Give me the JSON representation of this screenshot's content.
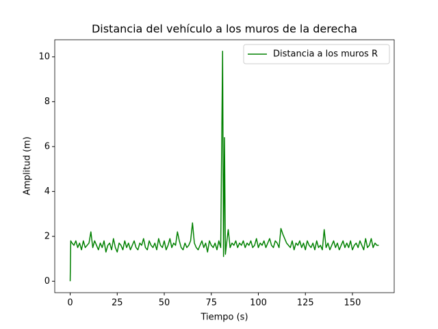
{
  "chart_data": {
    "type": "line",
    "title": "Distancia del vehículo a los muros de la derecha",
    "xlabel": "Tiempo (s)",
    "ylabel": "Amplitud (m)",
    "x": [
      0,
      0.3,
      1,
      2,
      3,
      4,
      5,
      6,
      7,
      8,
      9,
      10,
      11,
      12,
      13,
      14,
      15,
      16,
      17,
      18,
      19,
      20,
      21,
      22,
      23,
      24,
      25,
      26,
      27,
      28,
      29,
      30,
      31,
      32,
      33,
      34,
      35,
      36,
      37,
      38,
      39,
      40,
      41,
      42,
      43,
      44,
      45,
      46,
      47,
      48,
      49,
      50,
      51,
      52,
      53,
      54,
      55,
      56,
      57,
      58,
      59,
      60,
      61,
      62,
      63,
      64,
      65,
      66,
      67,
      68,
      69,
      70,
      71,
      72,
      73,
      74,
      75,
      76,
      77,
      78,
      79,
      80,
      81,
      81.5,
      82,
      82.5,
      83,
      84,
      85,
      86,
      87,
      88,
      89,
      90,
      91,
      92,
      93,
      94,
      95,
      96,
      97,
      98,
      99,
      100,
      101,
      102,
      103,
      104,
      105,
      106,
      107,
      108,
      109,
      110,
      111,
      112,
      113,
      114,
      115,
      116,
      117,
      118,
      119,
      120,
      121,
      122,
      123,
      124,
      125,
      126,
      127,
      128,
      129,
      130,
      131,
      132,
      133,
      134,
      135,
      136,
      137,
      138,
      139,
      140,
      141,
      142,
      143,
      144,
      145,
      146,
      147,
      148,
      149,
      150,
      151,
      152,
      153,
      154,
      155,
      156,
      157,
      158,
      159,
      160,
      161,
      162,
      163,
      164
    ],
    "series": [
      {
        "name": "Distancia a los muros R",
        "color": "#008000",
        "values": [
          0,
          1.8,
          1.7,
          1.6,
          1.8,
          1.5,
          1.7,
          1.4,
          1.8,
          1.5,
          1.6,
          1.7,
          2.2,
          1.5,
          1.8,
          1.6,
          1.4,
          1.7,
          1.5,
          1.8,
          1.3,
          1.6,
          1.7,
          1.4,
          1.9,
          1.5,
          1.3,
          1.7,
          1.6,
          1.4,
          1.8,
          1.5,
          1.7,
          1.4,
          1.6,
          1.8,
          1.5,
          1.4,
          1.7,
          1.6,
          1.9,
          1.5,
          1.4,
          1.8,
          1.6,
          1.5,
          1.7,
          1.4,
          1.9,
          1.6,
          1.5,
          1.8,
          1.4,
          1.6,
          1.9,
          1.5,
          1.7,
          1.6,
          2.2,
          1.8,
          1.5,
          1.4,
          1.7,
          1.5,
          1.6,
          1.8,
          2.6,
          1.7,
          1.5,
          1.4,
          1.6,
          1.8,
          1.5,
          1.7,
          1.3,
          1.8,
          1.6,
          1.5,
          1.7,
          1.4,
          1.8,
          1.5,
          10.25,
          1.1,
          6.4,
          1.2,
          1.6,
          2.3,
          1.5,
          1.7,
          1.6,
          1.8,
          1.5,
          1.7,
          1.6,
          1.8,
          1.5,
          1.7,
          1.6,
          1.8,
          1.5,
          1.6,
          1.9,
          1.5,
          1.7,
          1.6,
          1.8,
          1.5,
          1.7,
          1.9,
          1.6,
          1.5,
          1.8,
          1.7,
          1.5,
          2.35,
          2.1,
          1.9,
          1.7,
          1.6,
          1.5,
          1.8,
          1.4,
          1.7,
          1.6,
          1.8,
          1.5,
          1.7,
          1.4,
          1.8,
          1.6,
          1.5,
          1.7,
          1.4,
          1.8,
          1.5,
          1.6,
          1.4,
          2.3,
          1.5,
          1.7,
          1.4,
          1.6,
          1.8,
          1.5,
          1.7,
          1.4,
          1.6,
          1.8,
          1.5,
          1.7,
          1.5,
          1.8,
          1.4,
          1.6,
          1.7,
          1.5,
          1.8,
          1.6,
          1.4,
          1.9,
          1.5,
          1.6,
          1.9,
          1.5,
          1.7,
          1.6,
          1.6
        ]
      }
    ],
    "xlim": [
      -8.2,
      172.2
    ],
    "ylim": [
      -0.51,
      10.76
    ],
    "xticks": [
      0,
      25,
      50,
      75,
      100,
      125,
      150
    ],
    "yticks": [
      0,
      2,
      4,
      6,
      8,
      10
    ],
    "grid": false,
    "legend": "upper right"
  }
}
